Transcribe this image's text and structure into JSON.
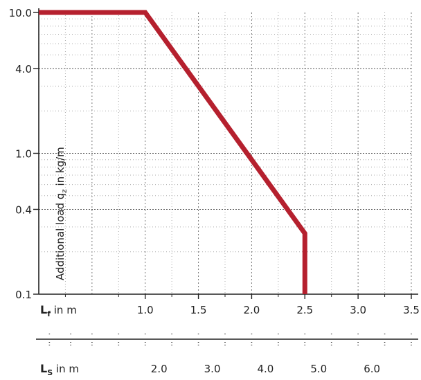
{
  "chart_data": {
    "type": "line",
    "y_scale": "log",
    "ylabel": "Additional load q",
    "ylabel_sub": "z",
    "ylabel_unit": " in kg/m",
    "ylim": [
      0.1,
      10.0
    ],
    "yticks": [
      "10.0",
      "4.0",
      "1.0",
      "0.4",
      "0.1"
    ],
    "ytick_values": [
      10.0,
      4.0,
      1.0,
      0.4,
      0.1
    ],
    "xlim": [
      0.0,
      3.5
    ],
    "xlabel_main": "L",
    "xlabel_main_sub": "f",
    "xlabel_main_unit": " in m",
    "xticks": [
      "1.0",
      "1.5",
      "2.0",
      "2.5",
      "3.0",
      "3.5"
    ],
    "xtick_values": [
      1.0,
      1.5,
      2.0,
      2.5,
      3.0,
      3.5
    ],
    "xlabel_secondary": "L",
    "xlabel_secondary_sub": "S",
    "xlabel_secondary_unit": " in m",
    "xticks_secondary": [
      "2.0",
      "3.0",
      "4.0",
      "5.0",
      "6.0"
    ],
    "xticks_secondary_at_primary": [
      1.0,
      1.5,
      2.0,
      2.5,
      3.0
    ],
    "grid": true,
    "series": [
      {
        "color": "#b5202e",
        "x": [
          0.0,
          1.0,
          2.5,
          2.5
        ],
        "y": [
          10.0,
          10.0,
          0.27,
          0.1
        ]
      }
    ]
  }
}
